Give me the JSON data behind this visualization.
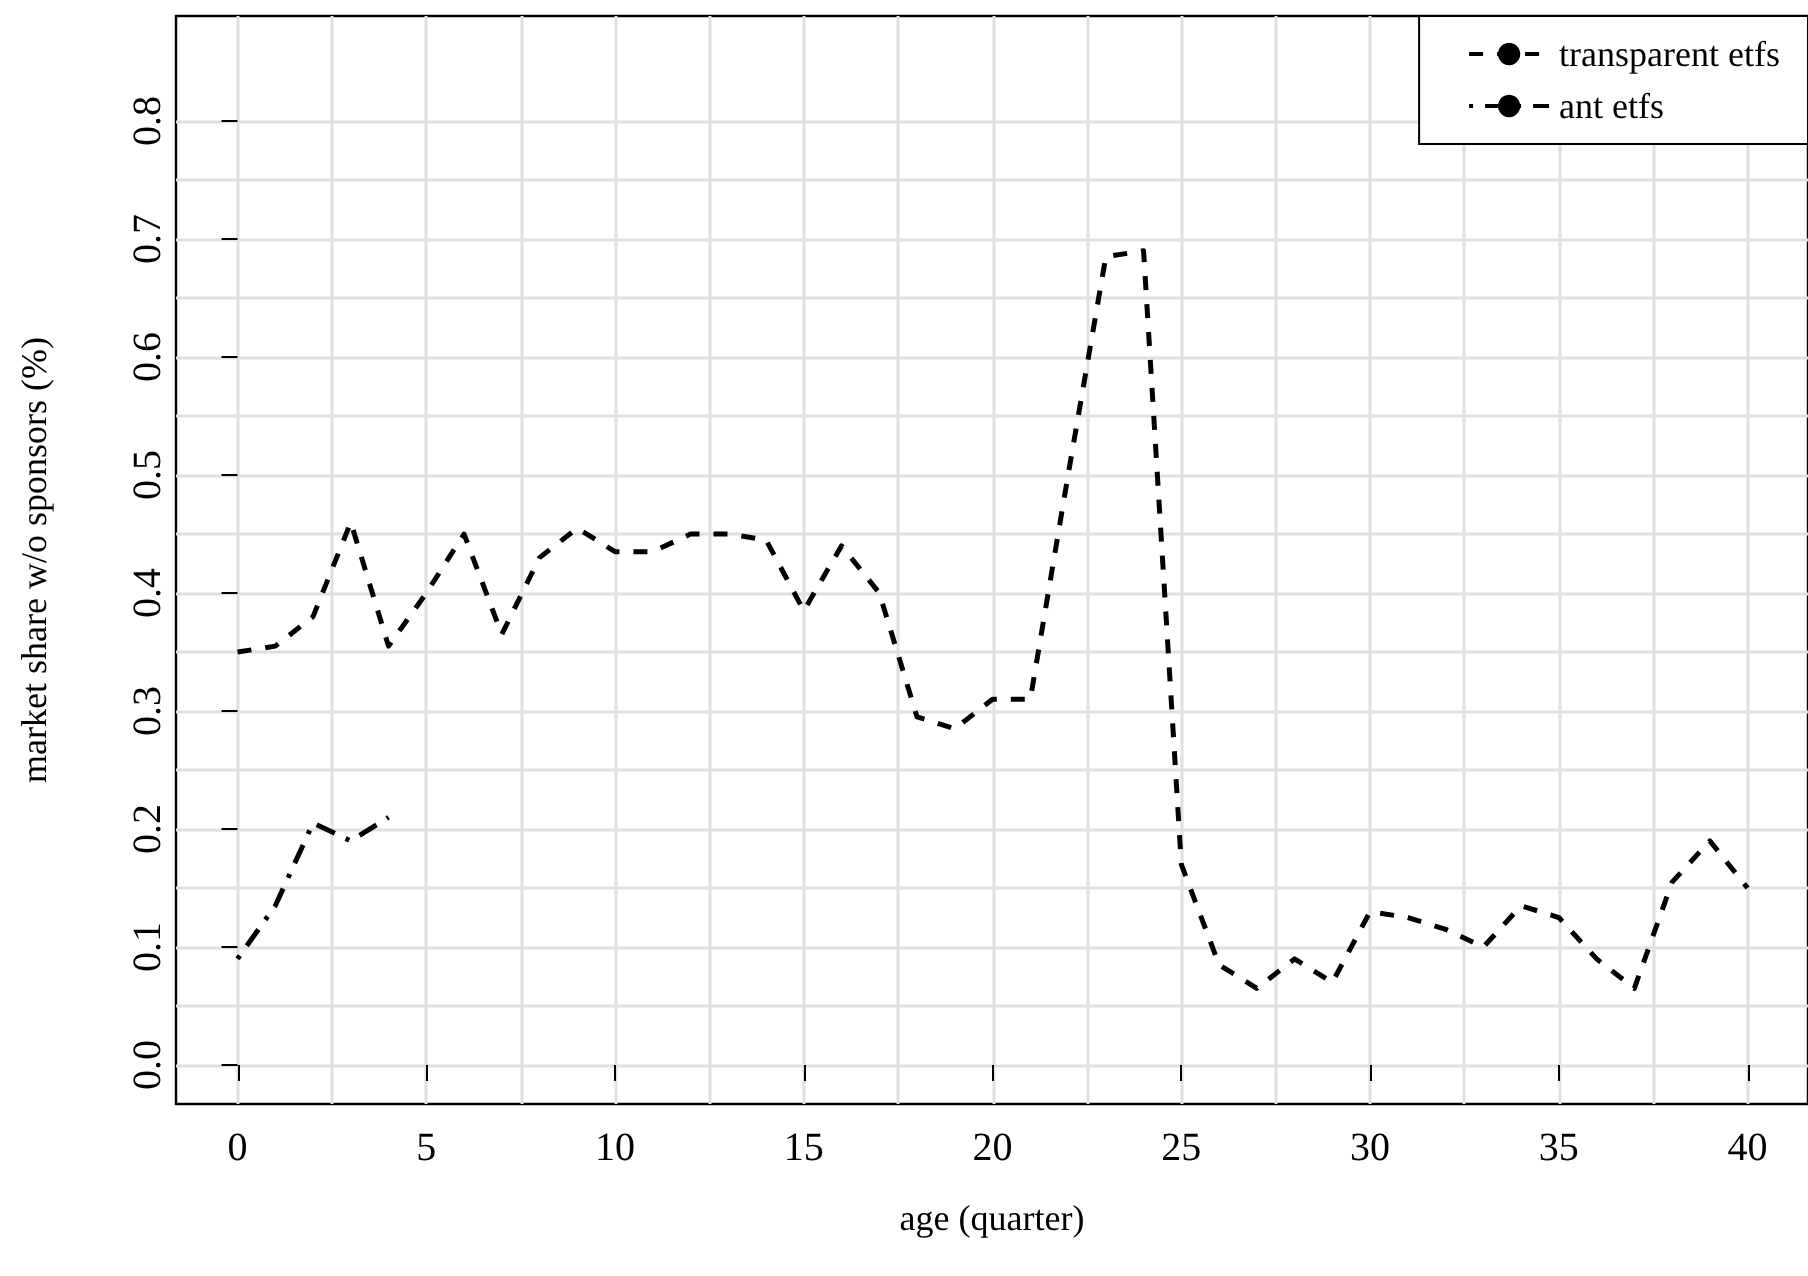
{
  "chart_data": {
    "type": "line",
    "xlabel": "age (quarter)",
    "ylabel": "market share w/o sponsors (%)",
    "x": [
      0,
      1,
      2,
      3,
      4,
      5,
      6,
      7,
      8,
      9,
      10,
      11,
      12,
      13,
      14,
      15,
      16,
      17,
      18,
      19,
      20,
      21,
      22,
      23,
      24,
      25,
      26,
      27,
      28,
      29,
      30,
      31,
      32,
      33,
      34,
      35,
      36,
      37,
      38,
      39,
      40
    ],
    "series": [
      {
        "name": "transparent etfs",
        "color": "#000000",
        "line_style": "dashed",
        "values": [
          0.35,
          0.355,
          0.38,
          0.46,
          0.355,
          0.4,
          0.45,
          0.365,
          0.43,
          0.455,
          0.435,
          0.435,
          0.45,
          0.45,
          0.445,
          0.385,
          0.44,
          0.4,
          0.295,
          0.285,
          0.31,
          0.31,
          0.5,
          0.685,
          0.69,
          0.17,
          0.085,
          0.065,
          0.09,
          0.07,
          0.13,
          0.125,
          0.115,
          0.1,
          0.135,
          0.125,
          0.09,
          0.065,
          0.155,
          0.19,
          0.15
        ]
      },
      {
        "name": "ant etfs",
        "color": "#000000",
        "line_style": "dashdot",
        "x": [
          0,
          1,
          2,
          3,
          4
        ],
        "values": [
          0.09,
          0.135,
          0.205,
          0.19,
          0.21
        ]
      }
    ],
    "xlim": [
      -1.63,
      41.6
    ],
    "ylim": [
      -0.033,
      0.889
    ],
    "xticks": [
      0,
      5,
      10,
      15,
      20,
      25,
      30,
      35,
      40
    ],
    "yticks": [
      {
        "value": 0,
        "label": "0.0"
      },
      {
        "value": 0.1,
        "label": "0.1"
      },
      {
        "value": 0.2,
        "label": "0.2"
      },
      {
        "value": 0.3,
        "label": "0.3"
      },
      {
        "value": 0.4,
        "label": "0.4"
      },
      {
        "value": 0.5,
        "label": "0.5"
      },
      {
        "value": 0.6,
        "label": "0.6"
      },
      {
        "value": 0.7,
        "label": "0.7"
      },
      {
        "value": 0.8,
        "label": "0.8"
      }
    ],
    "grid": true,
    "legend": "top right",
    "marker": "none"
  }
}
